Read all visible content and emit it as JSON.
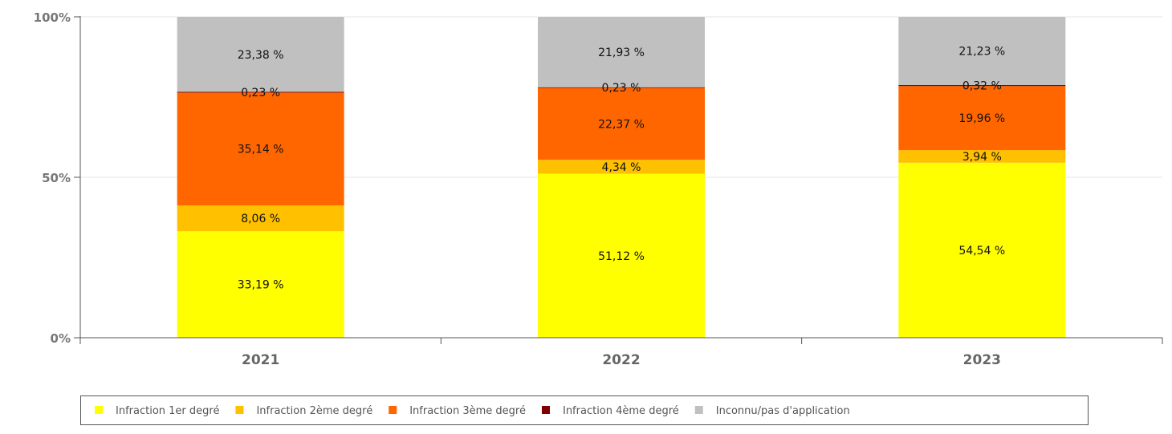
{
  "chart_data": {
    "type": "bar",
    "stacked": true,
    "title": "",
    "xlabel": "",
    "ylabel": "",
    "ylim": [
      0,
      100
    ],
    "y_ticks": [
      "0%",
      "50%",
      "100%"
    ],
    "grid": true,
    "legend_position": "bottom",
    "categories": [
      "2021",
      "2022",
      "2023"
    ],
    "series": [
      {
        "name": "Infraction 1er degré",
        "color": "#ffff00",
        "values": [
          33.19,
          51.12,
          54.54
        ],
        "labels": [
          "33,19 %",
          "51,12 %",
          "54,54 %"
        ]
      },
      {
        "name": "Infraction 2ème degré",
        "color": "#ffc000",
        "values": [
          8.06,
          4.34,
          3.94
        ],
        "labels": [
          "8,06 %",
          "4,34 %",
          "3,94 %"
        ]
      },
      {
        "name": "Infraction 3ème degré",
        "color": "#ff6600",
        "values": [
          35.14,
          22.37,
          19.96
        ],
        "labels": [
          "35,14 %",
          "22,37 %",
          "19,96 %"
        ]
      },
      {
        "name": "Infraction 4ème degré",
        "color": "#800000",
        "values": [
          0.23,
          0.23,
          0.32
        ],
        "labels": [
          "0,23 %",
          "0,23 %",
          "0,32 %"
        ]
      },
      {
        "name": "Inconnu/pas d'application",
        "color": "#c0c0c0",
        "values": [
          23.38,
          21.93,
          21.23
        ],
        "labels": [
          "23,38 %",
          "21,93 %",
          "21,23 %"
        ]
      }
    ]
  }
}
